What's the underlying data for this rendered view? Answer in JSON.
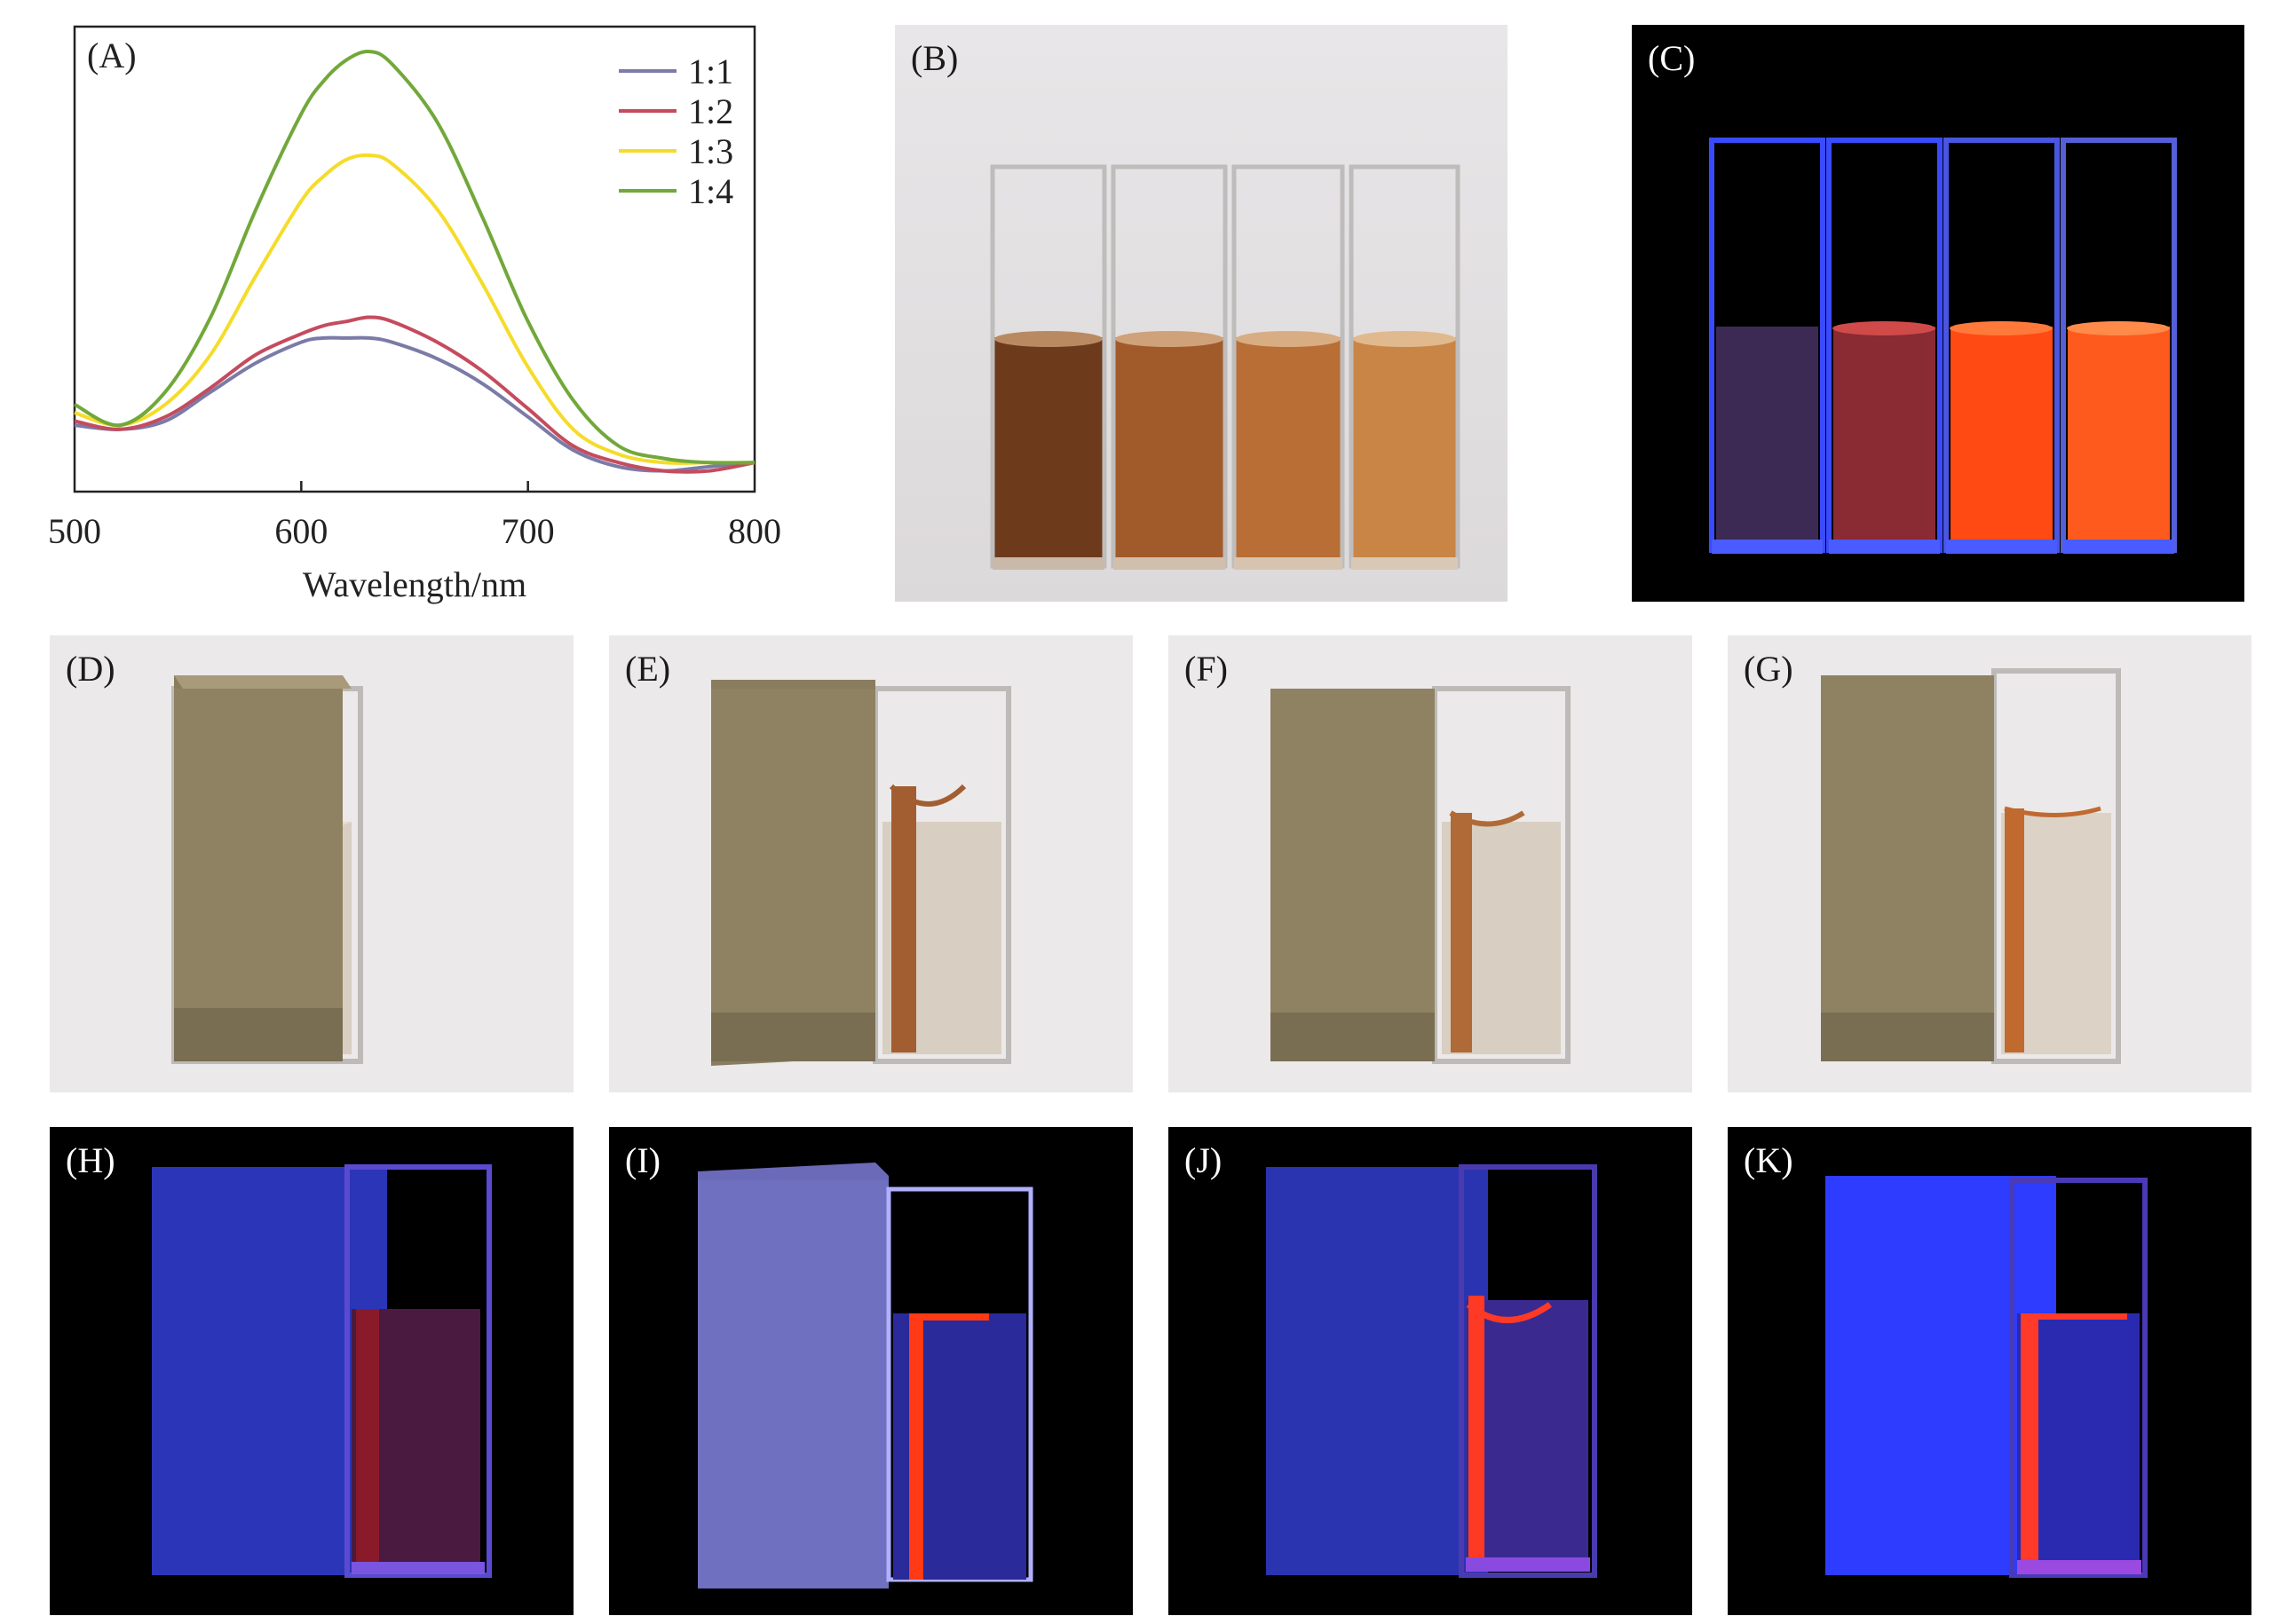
{
  "chart_data": {
    "type": "line",
    "panel_label": "(A)",
    "xlabel": "Wavelength/nm",
    "ylabel": "",
    "xlim": [
      500,
      800
    ],
    "x_ticks": [
      "500",
      "600",
      "700",
      "800"
    ],
    "grid": false,
    "legend_position": "top-right",
    "series": [
      {
        "name": "1:1",
        "color": "#7b7ba8",
        "x": [
          500,
          520,
          540,
          560,
          580,
          600,
          610,
          620,
          630,
          640,
          660,
          680,
          700,
          720,
          740,
          760,
          780,
          800
        ],
        "y": [
          0.16,
          0.15,
          0.17,
          0.24,
          0.31,
          0.36,
          0.37,
          0.37,
          0.37,
          0.36,
          0.32,
          0.26,
          0.18,
          0.1,
          0.06,
          0.05,
          0.06,
          0.07
        ]
      },
      {
        "name": "1:2",
        "color": "#c54b5e",
        "x": [
          500,
          520,
          540,
          560,
          580,
          600,
          610,
          620,
          630,
          640,
          660,
          680,
          700,
          720,
          740,
          760,
          780,
          800
        ],
        "y": [
          0.17,
          0.15,
          0.18,
          0.25,
          0.33,
          0.38,
          0.4,
          0.41,
          0.42,
          0.41,
          0.36,
          0.29,
          0.2,
          0.11,
          0.07,
          0.05,
          0.05,
          0.07
        ]
      },
      {
        "name": "1:3",
        "color": "#f5dc2a",
        "x": [
          500,
          520,
          540,
          560,
          580,
          600,
          610,
          620,
          630,
          640,
          660,
          680,
          700,
          720,
          740,
          760,
          780,
          800
        ],
        "y": [
          0.19,
          0.16,
          0.21,
          0.33,
          0.52,
          0.7,
          0.76,
          0.8,
          0.81,
          0.79,
          0.68,
          0.5,
          0.3,
          0.15,
          0.09,
          0.07,
          0.07,
          0.07
        ]
      },
      {
        "name": "1:4",
        "color": "#72a83a",
        "x": [
          500,
          520,
          540,
          560,
          580,
          600,
          610,
          620,
          630,
          640,
          660,
          680,
          700,
          720,
          740,
          760,
          780,
          800
        ],
        "y": [
          0.21,
          0.16,
          0.24,
          0.42,
          0.68,
          0.91,
          0.99,
          1.04,
          1.06,
          1.03,
          0.89,
          0.66,
          0.41,
          0.22,
          0.11,
          0.08,
          0.07,
          0.07
        ]
      }
    ]
  },
  "photos": {
    "B": {
      "label": "(B)"
    },
    "C": {
      "label": "(C)"
    },
    "D": {
      "label": "(D)"
    },
    "E": {
      "label": "(E)"
    },
    "F": {
      "label": "(F)"
    },
    "G": {
      "label": "(G)"
    },
    "H": {
      "label": "(H)"
    },
    "I": {
      "label": "(I)"
    },
    "J": {
      "label": "(J)"
    },
    "K": {
      "label": "(K)"
    }
  },
  "colors": {
    "liquid_daylight": [
      "#6e3a1c",
      "#a15a2a",
      "#b86e34",
      "#c98545"
    ],
    "liquid_uv": [
      "#3c2a55",
      "#8a2a33",
      "#ff4a14",
      "#ff5a1e"
    ],
    "uv_glow": "#3a4bff",
    "magnet": "#8a7c5e"
  }
}
